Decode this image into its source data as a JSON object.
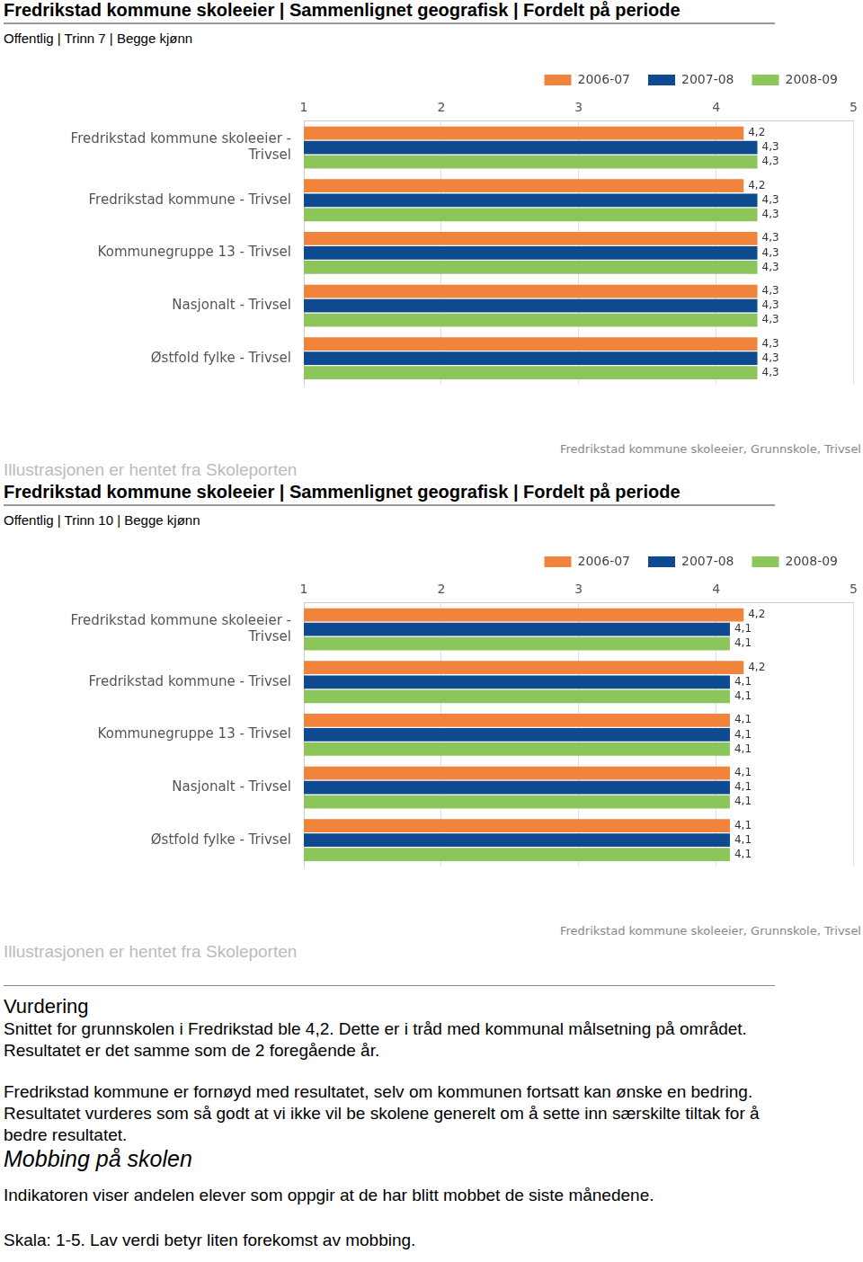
{
  "chart_data": [
    {
      "type": "bar",
      "orientation": "horizontal",
      "title": "Fredrikstad kommune skoleeier | Sammenlignet geografisk | Fordelt på periode",
      "subtitle": "Offentlig | Trinn 7 | Begge kjønn",
      "annotations": [
        "Fredrikstad kommune skoleeier, Grunnskole, Trivsel"
      ],
      "categories": [
        "Fredrikstad kommune skoleeier - Trivsel",
        "Fredrikstad kommune - Trivsel",
        "Kommunegruppe 13 - Trivsel",
        "Nasjonalt - Trivsel",
        "Østfold fylke - Trivsel"
      ],
      "series": [
        {
          "name": "2006-07",
          "color": "#f0843c",
          "values": [
            4.2,
            4.2,
            4.3,
            4.3,
            4.3
          ],
          "value_labels": [
            "4,2",
            "4,2",
            "4,3",
            "4,3",
            "4,3"
          ]
        },
        {
          "name": "2007-08",
          "color": "#0d4a8f",
          "values": [
            4.3,
            4.3,
            4.3,
            4.3,
            4.3
          ],
          "value_labels": [
            "4,3",
            "4,3",
            "4,3",
            "4,3",
            "4,3"
          ]
        },
        {
          "name": "2008-09",
          "color": "#8cc65a",
          "values": [
            4.3,
            4.3,
            4.3,
            4.3,
            4.3
          ],
          "value_labels": [
            "4,3",
            "4,3",
            "4,3",
            "4,3",
            "4,3"
          ]
        }
      ],
      "xlim": [
        1,
        5
      ],
      "xticks": [
        1,
        2,
        3,
        4,
        5
      ],
      "grid": true,
      "legend": "top-right",
      "data_labels": true
    },
    {
      "type": "bar",
      "orientation": "horizontal",
      "title": "Fredrikstad kommune skoleeier | Sammenlignet geografisk | Fordelt på periode",
      "subtitle": "Offentlig | Trinn 10 | Begge kjønn",
      "annotations": [
        "Fredrikstad kommune skoleeier, Grunnskole, Trivsel"
      ],
      "categories": [
        "Fredrikstad kommune skoleeier - Trivsel",
        "Fredrikstad kommune - Trivsel",
        "Kommunegruppe 13 - Trivsel",
        "Nasjonalt - Trivsel",
        "Østfold fylke - Trivsel"
      ],
      "series": [
        {
          "name": "2006-07",
          "color": "#f0843c",
          "values": [
            4.2,
            4.2,
            4.1,
            4.1,
            4.1
          ],
          "value_labels": [
            "4,2",
            "4,2",
            "4,1",
            "4,1",
            "4,1"
          ]
        },
        {
          "name": "2007-08",
          "color": "#0d4a8f",
          "values": [
            4.1,
            4.1,
            4.1,
            4.1,
            4.1
          ],
          "value_labels": [
            "4,1",
            "4,1",
            "4,1",
            "4,1",
            "4,1"
          ]
        },
        {
          "name": "2008-09",
          "color": "#8cc65a",
          "values": [
            4.1,
            4.1,
            4.1,
            4.1,
            4.1
          ],
          "value_labels": [
            "4,1",
            "4,1",
            "4,1",
            "4,1",
            "4,1"
          ]
        }
      ],
      "xlim": [
        1,
        5
      ],
      "xticks": [
        1,
        2,
        3,
        4,
        5
      ],
      "grid": true,
      "legend": "top-right",
      "data_labels": true
    }
  ],
  "document": {
    "caption": "Illustrasjonen er hentet fra Skoleporten",
    "heading": "Vurdering",
    "paragraphs": [
      "Snittet for grunnskolen i Fredrikstad ble 4,2. Dette er i tråd med kommunal målsetning på området. Resultatet er det samme som de 2 foregående år.",
      "Fredrikstad kommune er fornøyd med resultatet, selv om kommunen fortsatt kan ønske en bedring. Resultatet vurderes som så godt at vi ikke vil be skolene generelt om å sette inn særskilte tiltak for å bedre resultatet."
    ],
    "section_heading": "Mobbing på skolen",
    "section_paragraphs": [
      "Indikatoren viser andelen elever som oppgir at de har blitt mobbet de siste månedene.",
      "Skala: 1-5. Lav verdi betyr liten forekomst av mobbing."
    ]
  }
}
